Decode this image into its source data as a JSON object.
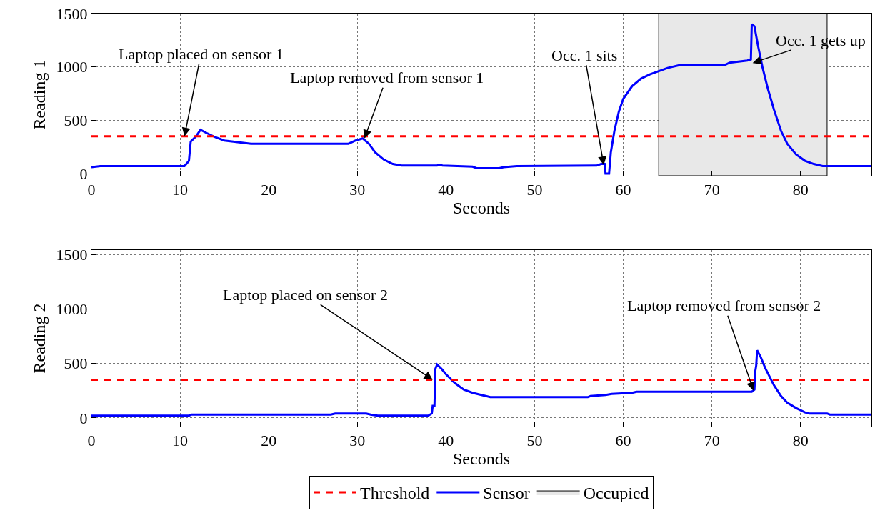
{
  "chart_data": [
    {
      "type": "line",
      "xlabel": "Seconds",
      "ylabel": "Reading 1",
      "xlim": [
        0,
        88
      ],
      "xticks": [
        0,
        10,
        20,
        30,
        40,
        50,
        60,
        70,
        80
      ],
      "ylim": [
        -20,
        1500
      ],
      "yticks": [
        0,
        500,
        1000,
        1500
      ],
      "grid": true,
      "legend": "bottom",
      "line_style": "solid",
      "marker": "none",
      "series": [
        {
          "name": "Sensor",
          "color": "#0000ff",
          "x": [
            0,
            1,
            10.5,
            11,
            11.2,
            11.8,
            12.3,
            13,
            14,
            15,
            16,
            17,
            18,
            29,
            29.8,
            30.6,
            31.3,
            32,
            33,
            34,
            35,
            39,
            39.2,
            39.6,
            43,
            43.5,
            46,
            46.5,
            48,
            57,
            57.5,
            57.9,
            58,
            58.4,
            58.6,
            59,
            59.5,
            60,
            61,
            62,
            63,
            64,
            65,
            66.5,
            71.5,
            72,
            74,
            74.4,
            74.5,
            74.8,
            75.2,
            75.7,
            76.3,
            77,
            77.8,
            78.5,
            79.5,
            80.5,
            81.5,
            82.5,
            88
          ],
          "values": [
            60,
            70,
            70,
            120,
            300,
            350,
            410,
            380,
            340,
            310,
            300,
            290,
            280,
            280,
            310,
            330,
            280,
            200,
            130,
            90,
            75,
            75,
            85,
            75,
            65,
            50,
            50,
            60,
            70,
            75,
            90,
            90,
            0,
            0,
            200,
            400,
            580,
            700,
            820,
            890,
            930,
            960,
            990,
            1020,
            1020,
            1040,
            1060,
            1070,
            1400,
            1380,
            1200,
            1000,
            800,
            600,
            400,
            280,
            180,
            120,
            90,
            70,
            70
          ]
        }
      ],
      "ref_lines": [
        {
          "axis": "y",
          "value": 350,
          "label": "Threshold",
          "color": "#ff0000",
          "line_style": "dashed"
        }
      ],
      "bands": [
        {
          "axis": "x",
          "from": 64,
          "to": 83,
          "label": "Occupied",
          "color": "#e8e8e8"
        }
      ],
      "annotations": [
        {
          "text": "Laptop placed on sensor 1",
          "x": 10.5,
          "y": 350
        },
        {
          "text": "Laptop removed from sensor 1",
          "x": 30.8,
          "y": 330
        },
        {
          "text": "Occ. 1 sits",
          "x": 57.8,
          "y": 80
        },
        {
          "text": "Occ. 1 gets up",
          "x": 74.6,
          "y": 1037
        }
      ]
    },
    {
      "type": "line",
      "xlabel": "Seconds",
      "ylabel": "Reading 2",
      "xlim": [
        0,
        88
      ],
      "xticks": [
        0,
        10,
        20,
        30,
        40,
        50,
        60,
        70,
        80
      ],
      "ylim": [
        -80,
        1540
      ],
      "yticks": [
        0,
        500,
        1000,
        1500
      ],
      "grid": true,
      "line_style": "solid",
      "marker": "none",
      "series": [
        {
          "color": "#0000ff",
          "x": [
            0,
            11,
            11.3,
            27,
            27.5,
            31,
            31.5,
            32.3,
            38,
            38.4,
            38.5,
            38.7,
            38.8,
            39,
            39.5,
            40,
            41,
            42,
            43,
            44,
            45,
            56,
            56.3,
            58,
            58.7,
            61,
            61.5,
            74.5,
            74.8,
            74.9,
            75,
            75.1,
            75.5,
            76,
            76.5,
            77,
            77.8,
            78.5,
            79.5,
            80.5,
            81,
            83,
            83.3,
            88
          ],
          "values": [
            20,
            20,
            30,
            30,
            40,
            40,
            30,
            20,
            20,
            40,
            110,
            110,
            450,
            490,
            450,
            400,
            320,
            260,
            230,
            210,
            190,
            190,
            200,
            210,
            220,
            230,
            240,
            240,
            260,
            430,
            480,
            620,
            560,
            460,
            380,
            300,
            200,
            140,
            90,
            50,
            40,
            40,
            30,
            30
          ]
        }
      ],
      "ref_lines": [
        {
          "axis": "y",
          "value": 350,
          "color": "#ff0000",
          "line_style": "dashed"
        }
      ],
      "annotations": [
        {
          "text": "Laptop placed on sensor 2",
          "x": 38.5,
          "y": 350
        },
        {
          "text": "Laptop removed from sensor 2",
          "x": 74.7,
          "y": 250
        }
      ]
    }
  ]
}
